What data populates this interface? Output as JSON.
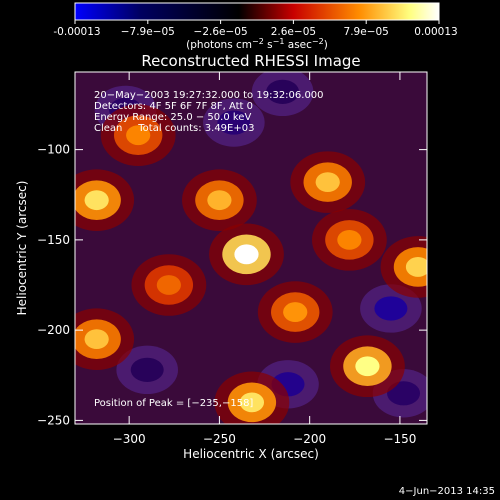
{
  "colorbar": {
    "tick_labels": [
      "-0.00013",
      "−7.9e−05",
      "−2.6e−05",
      "2.6e−05",
      "7.9e−05",
      "0.00013"
    ],
    "min": -0.00013,
    "max": 0.00013,
    "units_main": "(photons cm",
    "units_sup1": "−2",
    "units_mid": " s",
    "units_sup2": "−1",
    "units_mid2": " asec",
    "units_sup3": "−2",
    "units_end": ")",
    "colors": [
      "#0000ff",
      "#000000",
      "#c80000",
      "#ff8c00",
      "#ffff80",
      "#ffffff"
    ]
  },
  "chart_data": {
    "type": "heatmap",
    "title": "Reconstructed RHESSI Image",
    "xlabel": "Heliocentric X (arcsec)",
    "ylabel": "Heliocentric Y (arcsec)",
    "xlim": [
      -330,
      -135
    ],
    "ylim": [
      -252,
      -57
    ],
    "xticks": [
      -300,
      -250,
      -200,
      -150
    ],
    "yticks": [
      -250,
      -200,
      -150,
      -100
    ],
    "info_lines": [
      "20−May−2003 19:27:32.000 to 19:32:06.000",
      "Detectors: 4F 5F 6F 7F 8F, Att 0",
      "Energy Range: 25.0 − 50.0 keV",
      "Clean     Total counts: 3.49E+03"
    ],
    "peak_label": "Position of Peak = [−235,−158]",
    "peak": {
      "x": -235,
      "y": -158
    },
    "bright_sources": [
      {
        "x": -235,
        "y": -158,
        "value": 0.00013
      },
      {
        "x": -318,
        "y": -128,
        "value": 0.0001
      },
      {
        "x": -250,
        "y": -128,
        "value": 8.5e-05
      },
      {
        "x": -190,
        "y": -118,
        "value": 9e-05
      },
      {
        "x": -140,
        "y": -165,
        "value": 9.5e-05
      },
      {
        "x": -168,
        "y": -220,
        "value": 0.00011
      },
      {
        "x": -232,
        "y": -240,
        "value": 0.0001
      },
      {
        "x": -318,
        "y": -205,
        "value": 9e-05
      },
      {
        "x": -208,
        "y": -190,
        "value": 7.5e-05
      },
      {
        "x": -295,
        "y": -92,
        "value": 7e-05
      },
      {
        "x": -278,
        "y": -175,
        "value": 6e-05
      },
      {
        "x": -178,
        "y": -150,
        "value": 7e-05
      }
    ],
    "dim_sources": [
      {
        "x": -242,
        "y": -85,
        "value": -8e-05
      },
      {
        "x": -212,
        "y": -230,
        "value": -9e-05
      },
      {
        "x": -155,
        "y": -188,
        "value": -9.5e-05
      },
      {
        "x": -302,
        "y": -78,
        "value": -7e-05
      },
      {
        "x": -148,
        "y": -235,
        "value": -7e-05
      },
      {
        "x": -215,
        "y": -68,
        "value": -6e-05
      },
      {
        "x": -290,
        "y": -222,
        "value": -6e-05
      }
    ]
  },
  "footer": {
    "timestamp": "4−Jun−2013 14:35"
  }
}
